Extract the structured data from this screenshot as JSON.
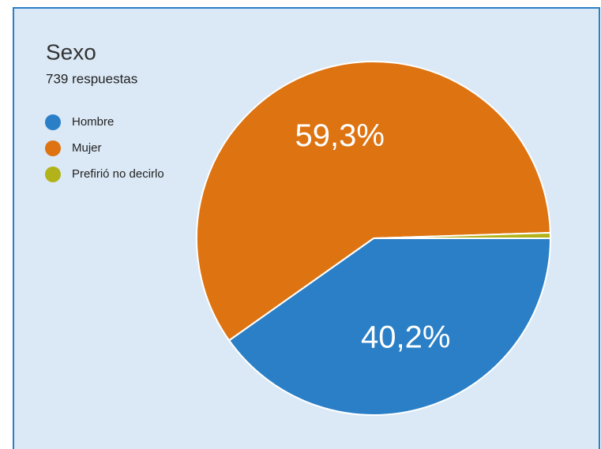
{
  "chart_data": {
    "type": "pie",
    "title": "Sexo",
    "subtitle": "739 respuestas",
    "categories": [
      "Hombre",
      "Mujer",
      "Prefirió no decirlo"
    ],
    "values": [
      40.2,
      59.3,
      0.5
    ],
    "value_labels": [
      "40,2%",
      "59,3%",
      null
    ],
    "colors": [
      "#2a7fc6",
      "#dd7311",
      "#b2b21a"
    ],
    "legend": "left"
  }
}
